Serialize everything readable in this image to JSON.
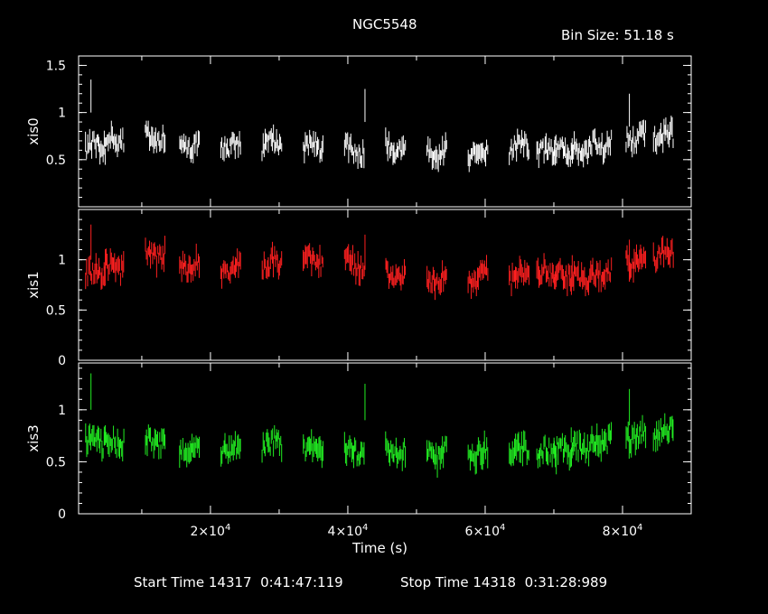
{
  "chart_data": {
    "type": "scatter",
    "title": "NGC5548",
    "bin_size_label": "Bin Size: 51.18 s",
    "xlabel": "Time (s)",
    "x_tick_labels": [
      {
        "value": 20000,
        "mantissa": "2×10",
        "exp": "4"
      },
      {
        "value": 40000,
        "mantissa": "4×10",
        "exp": "4"
      },
      {
        "value": 60000,
        "mantissa": "6×10",
        "exp": "4"
      },
      {
        "value": 80000,
        "mantissa": "8×10",
        "exp": "4"
      }
    ],
    "xlim": [
      800,
      90000
    ],
    "segment_starts": [
      1800,
      4500,
      10500,
      15500,
      21500,
      27500,
      33500,
      39500,
      45500,
      51500,
      57500,
      63500,
      67500,
      70000,
      72500,
      75500,
      80500,
      84500
    ],
    "segment_duration": 3000,
    "panels": [
      {
        "name": "xis0",
        "ylabel": "xis0",
        "color": "#ffffff",
        "ylim": [
          0,
          1.6
        ],
        "y_ticks": [
          0.5,
          1,
          1.5
        ],
        "y_tick_labels": [
          "0.5",
          "1",
          "1.5"
        ],
        "segment_levels": [
          0.63,
          0.72,
          0.74,
          0.65,
          0.65,
          0.66,
          0.64,
          0.6,
          0.62,
          0.58,
          0.57,
          0.64,
          0.58,
          0.6,
          0.62,
          0.66,
          0.73,
          0.75
        ]
      },
      {
        "name": "xis1",
        "ylabel": "xis1",
        "color": "#ff2020",
        "ylim": [
          0,
          1.5
        ],
        "y_ticks": [
          0,
          0.5,
          1
        ],
        "y_tick_labels": [
          "0",
          "0.5",
          "1"
        ],
        "segment_levels": [
          0.85,
          0.92,
          1.05,
          0.95,
          0.93,
          0.95,
          0.98,
          0.95,
          0.85,
          0.82,
          0.82,
          0.82,
          0.84,
          0.85,
          0.84,
          0.88,
          1.0,
          1.05
        ]
      },
      {
        "name": "xis3",
        "ylabel": "xis3",
        "color": "#22ee22",
        "ylim": [
          0,
          1.45
        ],
        "y_ticks": [
          0,
          0.5,
          1
        ],
        "y_tick_labels": [
          "0",
          "0.5",
          "1"
        ],
        "segment_levels": [
          0.7,
          0.7,
          0.7,
          0.63,
          0.63,
          0.66,
          0.63,
          0.6,
          0.6,
          0.58,
          0.58,
          0.6,
          0.58,
          0.62,
          0.64,
          0.7,
          0.75,
          0.78
        ]
      }
    ]
  },
  "footer": {
    "start_label": "Start Time 14317  0:41:47:119",
    "stop_label": "Stop Time 14318  0:31:28:989"
  }
}
